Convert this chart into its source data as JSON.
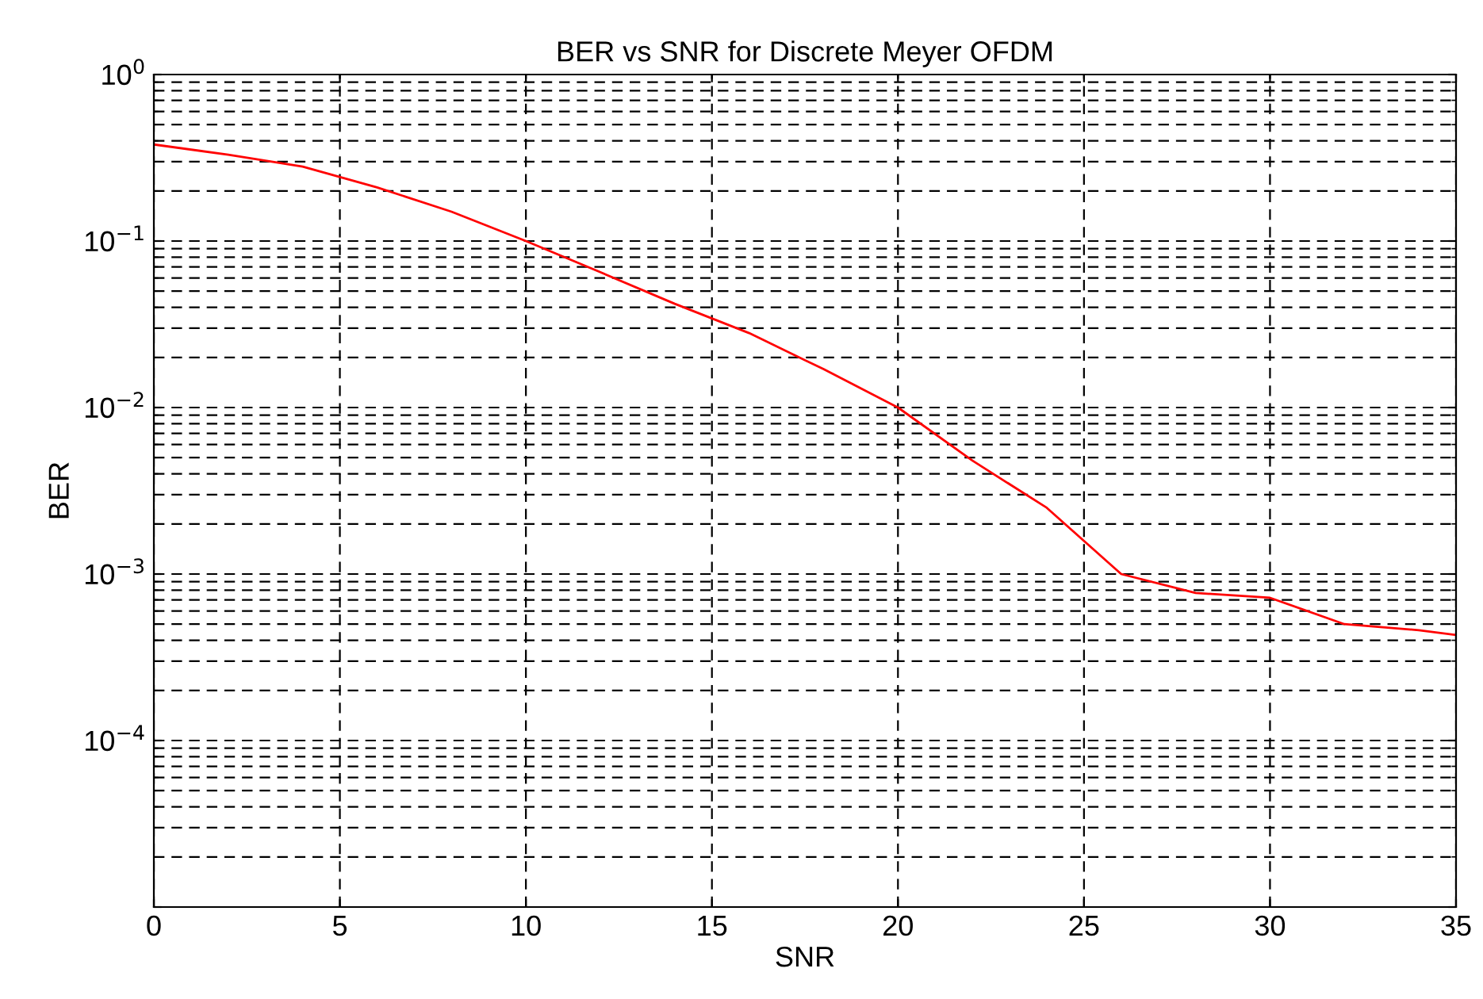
{
  "chart_data": {
    "type": "line",
    "title": "BER vs SNR for Discrete Meyer OFDM",
    "xlabel": "SNR",
    "ylabel": "BER",
    "log": "y",
    "x": [
      0,
      2,
      4,
      6,
      8,
      10,
      12,
      14,
      16,
      18,
      20,
      22,
      24,
      26,
      28,
      30,
      32,
      34,
      35
    ],
    "series": [
      {
        "color": "#ff0000",
        "values": [
          0.38,
          0.33,
          0.28,
          0.21,
          0.15,
          0.1,
          0.065,
          0.042,
          0.028,
          0.017,
          0.01,
          0.0048,
          0.0025,
          0.001,
          0.00077,
          0.00072,
          0.0005,
          0.00046,
          0.00043
        ]
      }
    ],
    "xlim": [
      0,
      35
    ],
    "xticks": [
      0,
      5,
      10,
      15,
      20,
      25,
      30,
      35
    ],
    "ylim": [
      1e-05,
      1
    ],
    "yticks": [
      {
        "value": 1e-05,
        "label": null
      },
      {
        "value": 0.0001,
        "label": "10$^{−4}$"
      },
      {
        "value": 0.001,
        "label": "10$^{−3}$"
      },
      {
        "value": 0.01,
        "label": "10$^{−2}$"
      },
      {
        "value": 0.1,
        "label": "10$^{−1}$"
      },
      {
        "value": 1,
        "label": "10$^{0}$"
      }
    ],
    "grid": true,
    "line_style": "solid",
    "marker": "none"
  }
}
